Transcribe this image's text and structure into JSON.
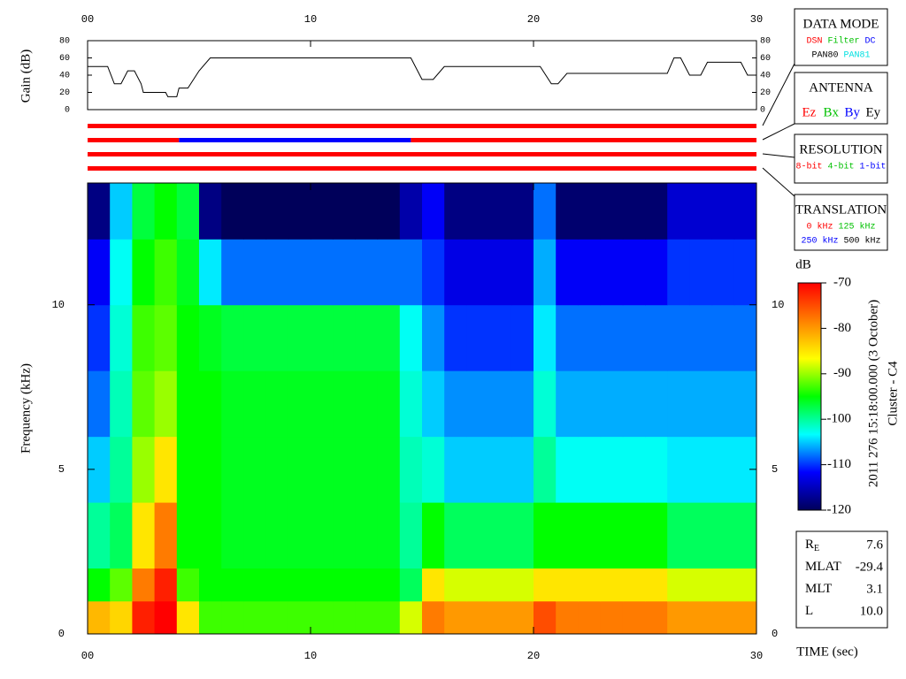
{
  "chart_data": [
    {
      "type": "line",
      "ylabel": "Gain (dB)",
      "color": "#000000",
      "x": [
        0,
        0.9,
        1.2,
        1.5,
        1.8,
        2.1,
        2.4,
        2.5,
        3.5,
        3.6,
        4.0,
        4.1,
        4.5,
        5.0,
        5.5,
        14.5,
        15.0,
        15.5,
        16.0,
        20.3,
        20.8,
        21.1,
        21.5,
        26.0,
        26.3,
        26.6,
        27.0,
        27.5,
        27.8,
        29.3,
        29.6,
        30
      ],
      "values": [
        50,
        50,
        30,
        30,
        45,
        45,
        30,
        20,
        20,
        15,
        15,
        25,
        25,
        45,
        60,
        60,
        35,
        35,
        50,
        50,
        30,
        30,
        42,
        42,
        60,
        60,
        40,
        40,
        55,
        55,
        40,
        40
      ],
      "xlim": [
        0,
        30
      ],
      "xticks": [
        {
          "value": 0,
          "label": "00"
        },
        10,
        20,
        30
      ],
      "ylim": [
        0,
        80
      ],
      "yticks": [
        0,
        20,
        40,
        60,
        80
      ]
    },
    {
      "type": "timeline",
      "xlim": [
        0,
        30
      ],
      "rows": [
        [
          {
            "start": 0,
            "end": 30,
            "color": "#ff0000"
          }
        ],
        [
          {
            "start": 0,
            "end": 4.1,
            "color": "#ff0000"
          },
          {
            "start": 4.1,
            "end": 14.5,
            "color": "#0000ff"
          },
          {
            "start": 14.5,
            "end": 30,
            "color": "#ff0000"
          }
        ],
        [
          {
            "start": 0,
            "end": 30,
            "color": "#ff0000"
          }
        ],
        [
          {
            "start": 0,
            "end": 30,
            "color": "#ff0000"
          }
        ]
      ]
    },
    {
      "type": "heatmap",
      "xlabel": "TIME (sec)",
      "ylabel": "Frequency (kHz)",
      "xbins": [
        0,
        1,
        2,
        3,
        4,
        5,
        6,
        7,
        8,
        9,
        10,
        11,
        12,
        13,
        14,
        15,
        16,
        17,
        18,
        19,
        20,
        21,
        22,
        23,
        24,
        25,
        26,
        27,
        28,
        29,
        30
      ],
      "ybins": [
        0,
        1,
        2,
        4,
        6,
        8,
        10,
        12,
        13.7
      ],
      "z": [
        [
          -82,
          -84,
          -72,
          -70,
          -85,
          -93,
          -93,
          -93,
          -93,
          -93,
          -93,
          -93,
          -93,
          -93,
          -88,
          -78,
          -80,
          -80,
          -80,
          -80,
          -75,
          -78,
          -78,
          -78,
          -78,
          -78,
          -80,
          -80,
          -80,
          -80
        ],
        [
          -95,
          -92,
          -78,
          -72,
          -93,
          -95,
          -95,
          -95,
          -95,
          -95,
          -95,
          -95,
          -95,
          -95,
          -98,
          -85,
          -88,
          -88,
          -88,
          -88,
          -85,
          -85,
          -85,
          -85,
          -85,
          -85,
          -88,
          -88,
          -88,
          -88
        ],
        [
          -100,
          -98,
          -85,
          -78,
          -95,
          -95,
          -96,
          -96,
          -96,
          -96,
          -96,
          -96,
          -96,
          -96,
          -100,
          -95,
          -98,
          -98,
          -98,
          -98,
          -95,
          -95,
          -95,
          -95,
          -95,
          -95,
          -98,
          -98,
          -98,
          -98
        ],
        [
          -105,
          -100,
          -90,
          -85,
          -95,
          -95,
          -96,
          -96,
          -96,
          -96,
          -96,
          -96,
          -96,
          -96,
          -101,
          -102,
          -105,
          -105,
          -105,
          -105,
          -100,
          -103,
          -103,
          -103,
          -103,
          -103,
          -104,
          -104,
          -104,
          -104
        ],
        [
          -108,
          -101,
          -92,
          -90,
          -95,
          -95,
          -96,
          -96,
          -96,
          -96,
          -96,
          -96,
          -96,
          -96,
          -102,
          -105,
          -107,
          -107,
          -107,
          -107,
          -102,
          -106,
          -106,
          -106,
          -106,
          -106,
          -106,
          -106,
          -106,
          -106
        ],
        [
          -110,
          -102,
          -93,
          -92,
          -95,
          -96,
          -97,
          -97,
          -97,
          -97,
          -97,
          -97,
          -97,
          -97,
          -103,
          -107,
          -110,
          -110,
          -110,
          -110,
          -104,
          -108,
          -108,
          -108,
          -108,
          -108,
          -108,
          -108,
          -108,
          -108
        ],
        [
          -112,
          -103,
          -95,
          -93,
          -96,
          -104,
          -108,
          -108,
          -108,
          -108,
          -108,
          -108,
          -108,
          -108,
          -108,
          -110,
          -113,
          -113,
          -113,
          -113,
          -106,
          -112,
          -112,
          -112,
          -112,
          -112,
          -110,
          -110,
          -110,
          -110
        ],
        [
          -118,
          -105,
          -97,
          -95,
          -97,
          -118,
          -120,
          -120,
          -120,
          -120,
          -120,
          -120,
          -120,
          -120,
          -116,
          -112,
          -118,
          -118,
          -118,
          -118,
          -108,
          -119,
          -119,
          -119,
          -119,
          -119,
          -114,
          -114,
          -114,
          -114
        ]
      ],
      "xlim": [
        0,
        30
      ],
      "xticks": [
        {
          "value": 0,
          "label": "00"
        },
        10,
        20,
        30
      ],
      "ylim": [
        0,
        13.7
      ],
      "yticks": [
        0,
        5,
        10
      ],
      "zlim": [
        -120,
        -70
      ],
      "zticks": [
        -70,
        -80,
        -90,
        -100,
        -110,
        -120
      ],
      "colorbar_label": "dB",
      "colormap": [
        "#00005a",
        "#0000ff",
        "#00ffff",
        "#00ff00",
        "#ffff00",
        "#ff8000",
        "#ff0000"
      ]
    }
  ],
  "legend_boxes": [
    {
      "title": "DATA MODE",
      "lines": [
        [
          {
            "text": "DSN",
            "color": "#ff0000"
          },
          {
            "text": "Filter",
            "color": "#00c000"
          },
          {
            "text": "DC",
            "color": "#0000ff"
          }
        ],
        [
          {
            "text": "PAN80",
            "color": "#000000"
          },
          {
            "text": "PAN81",
            "color": "#00e0e0"
          }
        ]
      ]
    },
    {
      "title": "ANTENNA",
      "lines": [
        [
          {
            "text": "Ez",
            "color": "#ff0000"
          },
          {
            "text": "Bx",
            "color": "#00c000"
          },
          {
            "text": "By",
            "color": "#0000ff"
          },
          {
            "text": "Ey",
            "color": "#000000"
          }
        ]
      ]
    },
    {
      "title": "RESOLUTION",
      "lines": [
        [
          {
            "text": "8-bit",
            "color": "#ff0000"
          },
          {
            "text": "4-bit",
            "color": "#00c000"
          },
          {
            "text": "1-bit",
            "color": "#0000ff"
          }
        ]
      ]
    },
    {
      "title": "TRANSLATION",
      "lines": [
        [
          {
            "text": "0 kHz",
            "color": "#ff0000"
          },
          {
            "text": "125 kHz",
            "color": "#00c000"
          }
        ],
        [
          {
            "text": "250 kHz",
            "color": "#0000ff"
          },
          {
            "text": "500 kHz",
            "color": "#000000"
          }
        ]
      ]
    }
  ],
  "info_box": {
    "rows": [
      {
        "label": "R",
        "subscript": "E",
        "value": "7.6"
      },
      {
        "label": "MLAT",
        "value": "-29.4"
      },
      {
        "label": "MLT",
        "value": "3.1"
      },
      {
        "label": "L",
        "value": "10.0"
      }
    ]
  },
  "annotations": [
    "2011 276 15:18:00.000 (3 October)",
    "Cluster - C4"
  ]
}
